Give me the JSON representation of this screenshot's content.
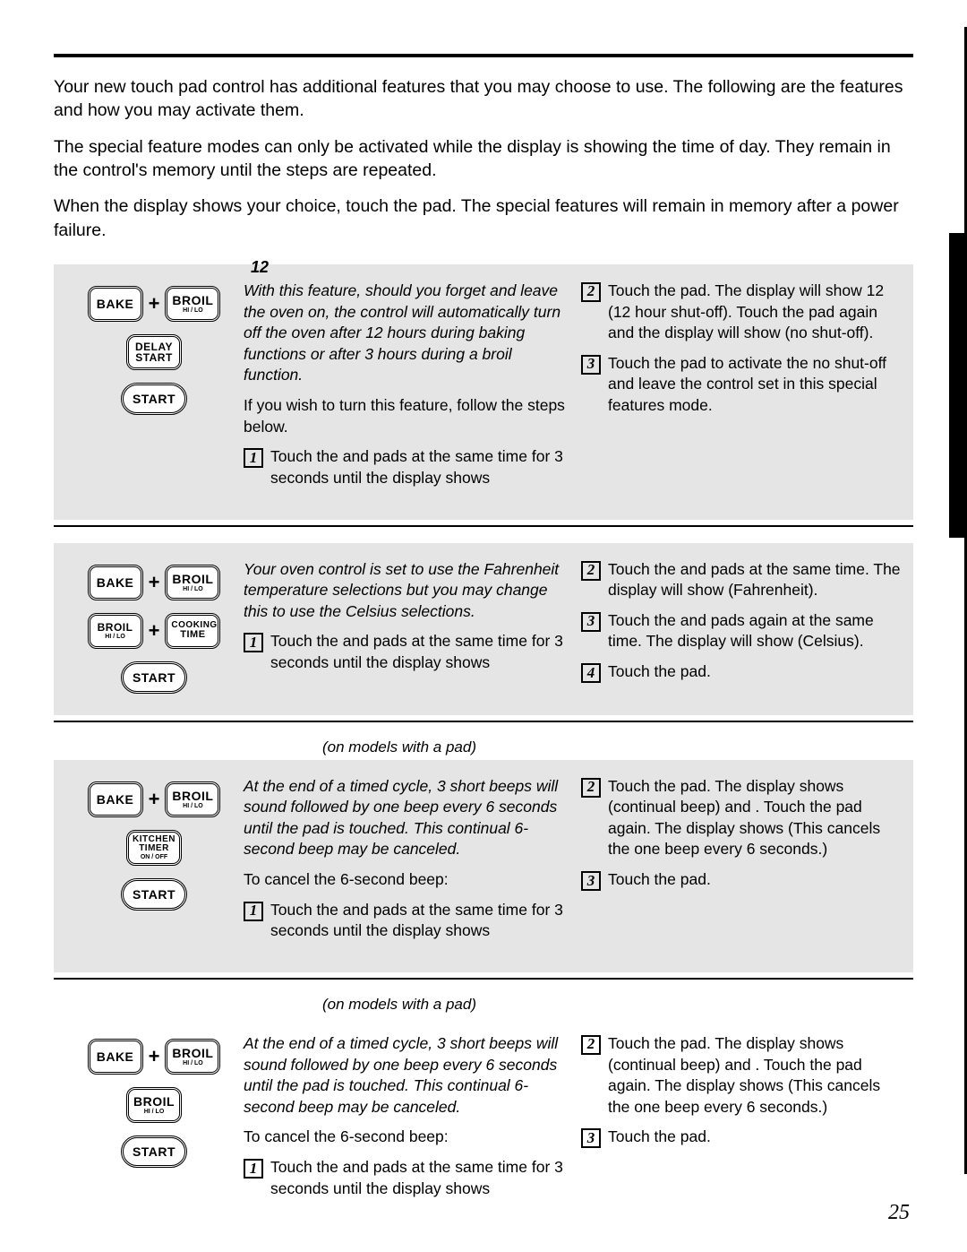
{
  "page_number": "25",
  "intro": {
    "p1": "Your new touch pad control has additional features that you may choose to use. The following are the features and how you may activate them.",
    "p2": "The special feature modes can only be activated while the display is showing the time of day. They remain in the control's memory until the steps are repeated.",
    "p3": "When the display shows your choice, touch the      pad. The special features will remain in memory after a power failure."
  },
  "buttons": {
    "bake": "BAKE",
    "broil": "BROIL",
    "broil_sub": "HI / LO",
    "delay_start_l1": "DELAY",
    "delay_start_l2": "START",
    "start": "START",
    "cooking_l1": "COOKING",
    "cooking_l2": "TIME",
    "kitchen_l1": "KITCHEN",
    "kitchen_l2": "TIMER",
    "kitchen_l3": "ON / OFF",
    "plus": "+"
  },
  "section1": {
    "title": "12",
    "desc": "With this feature, should you forget and leave the oven on, the control will automatically turn off the oven after 12 hours during baking functions or after 3 hours during a broil function.",
    "line": "If you wish to turn          this feature, follow the steps below.",
    "step1": "Touch the              and                    pads at the same time for 3 seconds until the display shows",
    "step2": "Touch the                            pad. The display will show 12            (12 hour shut-off). Touch the                        pad again and the display will show          (no shut-off).",
    "step3": "Touch the              pad to activate the no shut-off and leave the control set in this special features mode."
  },
  "section2": {
    "desc": "Your oven control is set to use the Fahrenheit temperature selections but you may change this to use the Celsius selections.",
    "step1": "Touch the              and                    pads at the same time for 3 seconds until the display shows",
    "step2": "Touch the                     and                pads at the same time. The display will show     (Fahrenheit).",
    "step3": "Touch the                     and                pads again at the same time. The display will show     (Celsius).",
    "step4": "Touch the              pad."
  },
  "section3": {
    "subhead": "(on models with a                                            pad)",
    "desc": "At the end of a timed cycle, 3 short beeps will sound followed by one beep every 6 seconds until the                 pad is touched. This continual 6-second beep may be canceled.",
    "line": "To cancel the 6-second beep:",
    "step1": "Touch the              and                    pads at the same time for 3 seconds until the display shows",
    "step2": "Touch the                                    pad. The display shows                  (continual beep) and          . Touch the                               pad again. The display shows             (This cancels the one beep every 6 seconds.)",
    "step3": "Touch the              pad."
  },
  "section4": {
    "subhead": "(on models with a                                    pad)",
    "desc": "At the end of a timed cycle, 3 short beeps will sound followed by one beep every 6 seconds until the                 pad is touched. This continual 6-second beep may be canceled.",
    "line": "To cancel the 6-second beep:",
    "step1": "Touch the              and                    pads at the same time for 3 seconds until the display shows",
    "step2": "Touch the                       pad. The display shows                 (continual beep) and         . Touch the                     pad again. The display shows            (This cancels the one beep every 6 seconds.)",
    "step3": "Touch the              pad."
  }
}
